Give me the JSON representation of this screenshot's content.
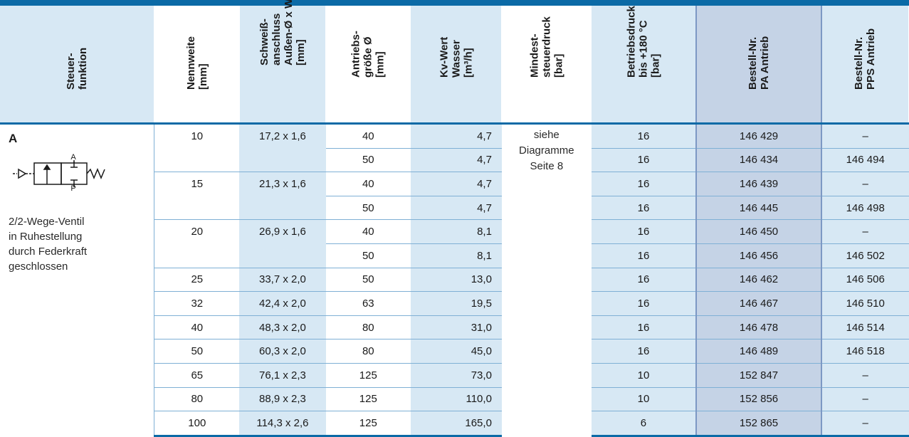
{
  "headers": [
    {
      "lines": [
        "Steuer-",
        "funktion"
      ]
    },
    {
      "lines": [
        "Nennweite",
        "[mm]"
      ]
    },
    {
      "lines": [
        "Schweiß-",
        "anschluss",
        "Außen-Ø x Ws",
        "[mm]"
      ]
    },
    {
      "lines": [
        "Antriebs-",
        "größe Ø",
        "[mm]"
      ]
    },
    {
      "lines": [
        "Kv-Wert",
        "Wasser",
        "[m³/h]"
      ]
    },
    {
      "lines": [
        "Mindest-",
        "steuerdruck",
        "[bar]"
      ]
    },
    {
      "lines": [
        "Betriebsdruck",
        "bis +180 °C",
        "[bar]"
      ]
    },
    {
      "lines": [
        "Bestell-Nr.",
        "PA Antrieb"
      ]
    },
    {
      "lines": [
        "Bestell-Nr.",
        "PPS Antrieb"
      ]
    }
  ],
  "control_function": {
    "label": "A",
    "symbol_port_a": "A",
    "symbol_port_p": "P",
    "description": [
      "2/2-Wege-Ventil",
      "in Ruhestellung",
      "durch Federkraft",
      "geschlossen"
    ]
  },
  "min_pressure_note": [
    "siehe",
    "Diagramme",
    "Seite 8"
  ],
  "rows": [
    {
      "dn": "10",
      "weld": "17,2 x 1,6",
      "actuator": "40",
      "kv": "4,7",
      "pressure": "16",
      "pa": "146 429",
      "pps": "–"
    },
    {
      "dn": "",
      "weld": "",
      "actuator": "50",
      "kv": "4,7",
      "pressure": "16",
      "pa": "146 434",
      "pps": "146 494"
    },
    {
      "dn": "15",
      "weld": "21,3 x 1,6",
      "actuator": "40",
      "kv": "4,7",
      "pressure": "16",
      "pa": "146 439",
      "pps": "–"
    },
    {
      "dn": "",
      "weld": "",
      "actuator": "50",
      "kv": "4,7",
      "pressure": "16",
      "pa": "146 445",
      "pps": "146 498"
    },
    {
      "dn": "20",
      "weld": "26,9 x 1,6",
      "actuator": "40",
      "kv": "8,1",
      "pressure": "16",
      "pa": "146 450",
      "pps": "–"
    },
    {
      "dn": "",
      "weld": "",
      "actuator": "50",
      "kv": "8,1",
      "pressure": "16",
      "pa": "146 456",
      "pps": "146 502"
    },
    {
      "dn": "25",
      "weld": "33,7 x 2,0",
      "actuator": "50",
      "kv": "13,0",
      "pressure": "16",
      "pa": "146 462",
      "pps": "146 506"
    },
    {
      "dn": "32",
      "weld": "42,4 x 2,0",
      "actuator": "63",
      "kv": "19,5",
      "pressure": "16",
      "pa": "146 467",
      "pps": "146 510"
    },
    {
      "dn": "40",
      "weld": "48,3 x 2,0",
      "actuator": "80",
      "kv": "31,0",
      "pressure": "16",
      "pa": "146 478",
      "pps": "146 514"
    },
    {
      "dn": "50",
      "weld": "60,3 x 2,0",
      "actuator": "80",
      "kv": "45,0",
      "pressure": "16",
      "pa": "146 489",
      "pps": "146 518"
    },
    {
      "dn": "65",
      "weld": "76,1 x 2,3",
      "actuator": "125",
      "kv": "73,0",
      "pressure": "10",
      "pa": "152 847",
      "pps": "–"
    },
    {
      "dn": "80",
      "weld": "88,9 x 2,3",
      "actuator": "125",
      "kv": "110,0",
      "pressure": "10",
      "pa": "152 856",
      "pps": "–"
    },
    {
      "dn": "100",
      "weld": "114,3 x 2,6",
      "actuator": "125",
      "kv": "165,0",
      "pressure": "6",
      "pa": "152 865",
      "pps": "–"
    }
  ],
  "colors": {
    "rule": "#0b6aa6",
    "light_blue": "#d7e8f4",
    "dark_blue": "#c5d3e6"
  }
}
